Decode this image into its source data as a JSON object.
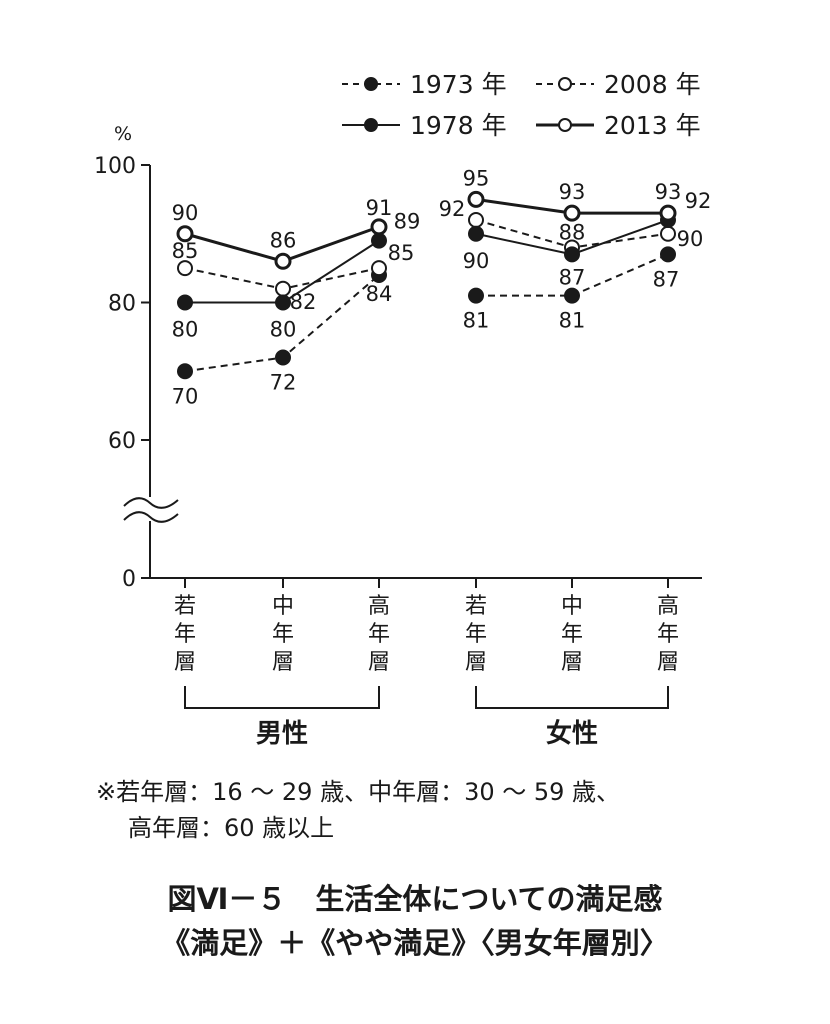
{
  "chart_data": {
    "type": "line",
    "y_unit": "%",
    "y_ticks": [
      0,
      60,
      80,
      100
    ],
    "y_axis_break": true,
    "ylim": [
      0,
      100
    ],
    "categories": [
      "若年層",
      "中年層",
      "高年層",
      "若年層",
      "中年層",
      "高年層"
    ],
    "groups": [
      {
        "label": "男性",
        "categories": [
          "若年層",
          "中年層",
          "高年層"
        ]
      },
      {
        "label": "女性",
        "categories": [
          "若年層",
          "中年層",
          "高年層"
        ]
      }
    ],
    "series": [
      {
        "name": "1973 年",
        "style": "dashed",
        "marker": "filled",
        "values": [
          70,
          72,
          84,
          81,
          81,
          87
        ]
      },
      {
        "name": "1978 年",
        "style": "solid",
        "marker": "filled",
        "values": [
          80,
          80,
          89,
          90,
          87,
          92
        ]
      },
      {
        "name": "2008 年",
        "style": "dashed",
        "marker": "hollow",
        "values": [
          85,
          82,
          85,
          92,
          88,
          90
        ]
      },
      {
        "name": "2013 年",
        "style": "solid-bold",
        "marker": "hollow",
        "values": [
          90,
          86,
          91,
          95,
          93,
          93
        ]
      }
    ],
    "legend_placement": "top-right",
    "grid": false,
    "colors": {
      "ink": "#1a1a1a",
      "background": "#ffffff"
    }
  },
  "footnote": {
    "line1": "※若年層：16 〜 29 歳、中年層：30 〜 59 歳、",
    "line2": "高年層：60 歳以上"
  },
  "caption": {
    "line1": "図Ⅵ－５　生活全体についての満足感",
    "line2": "《満足》＋《やや満足》〈男女年層別〉"
  }
}
